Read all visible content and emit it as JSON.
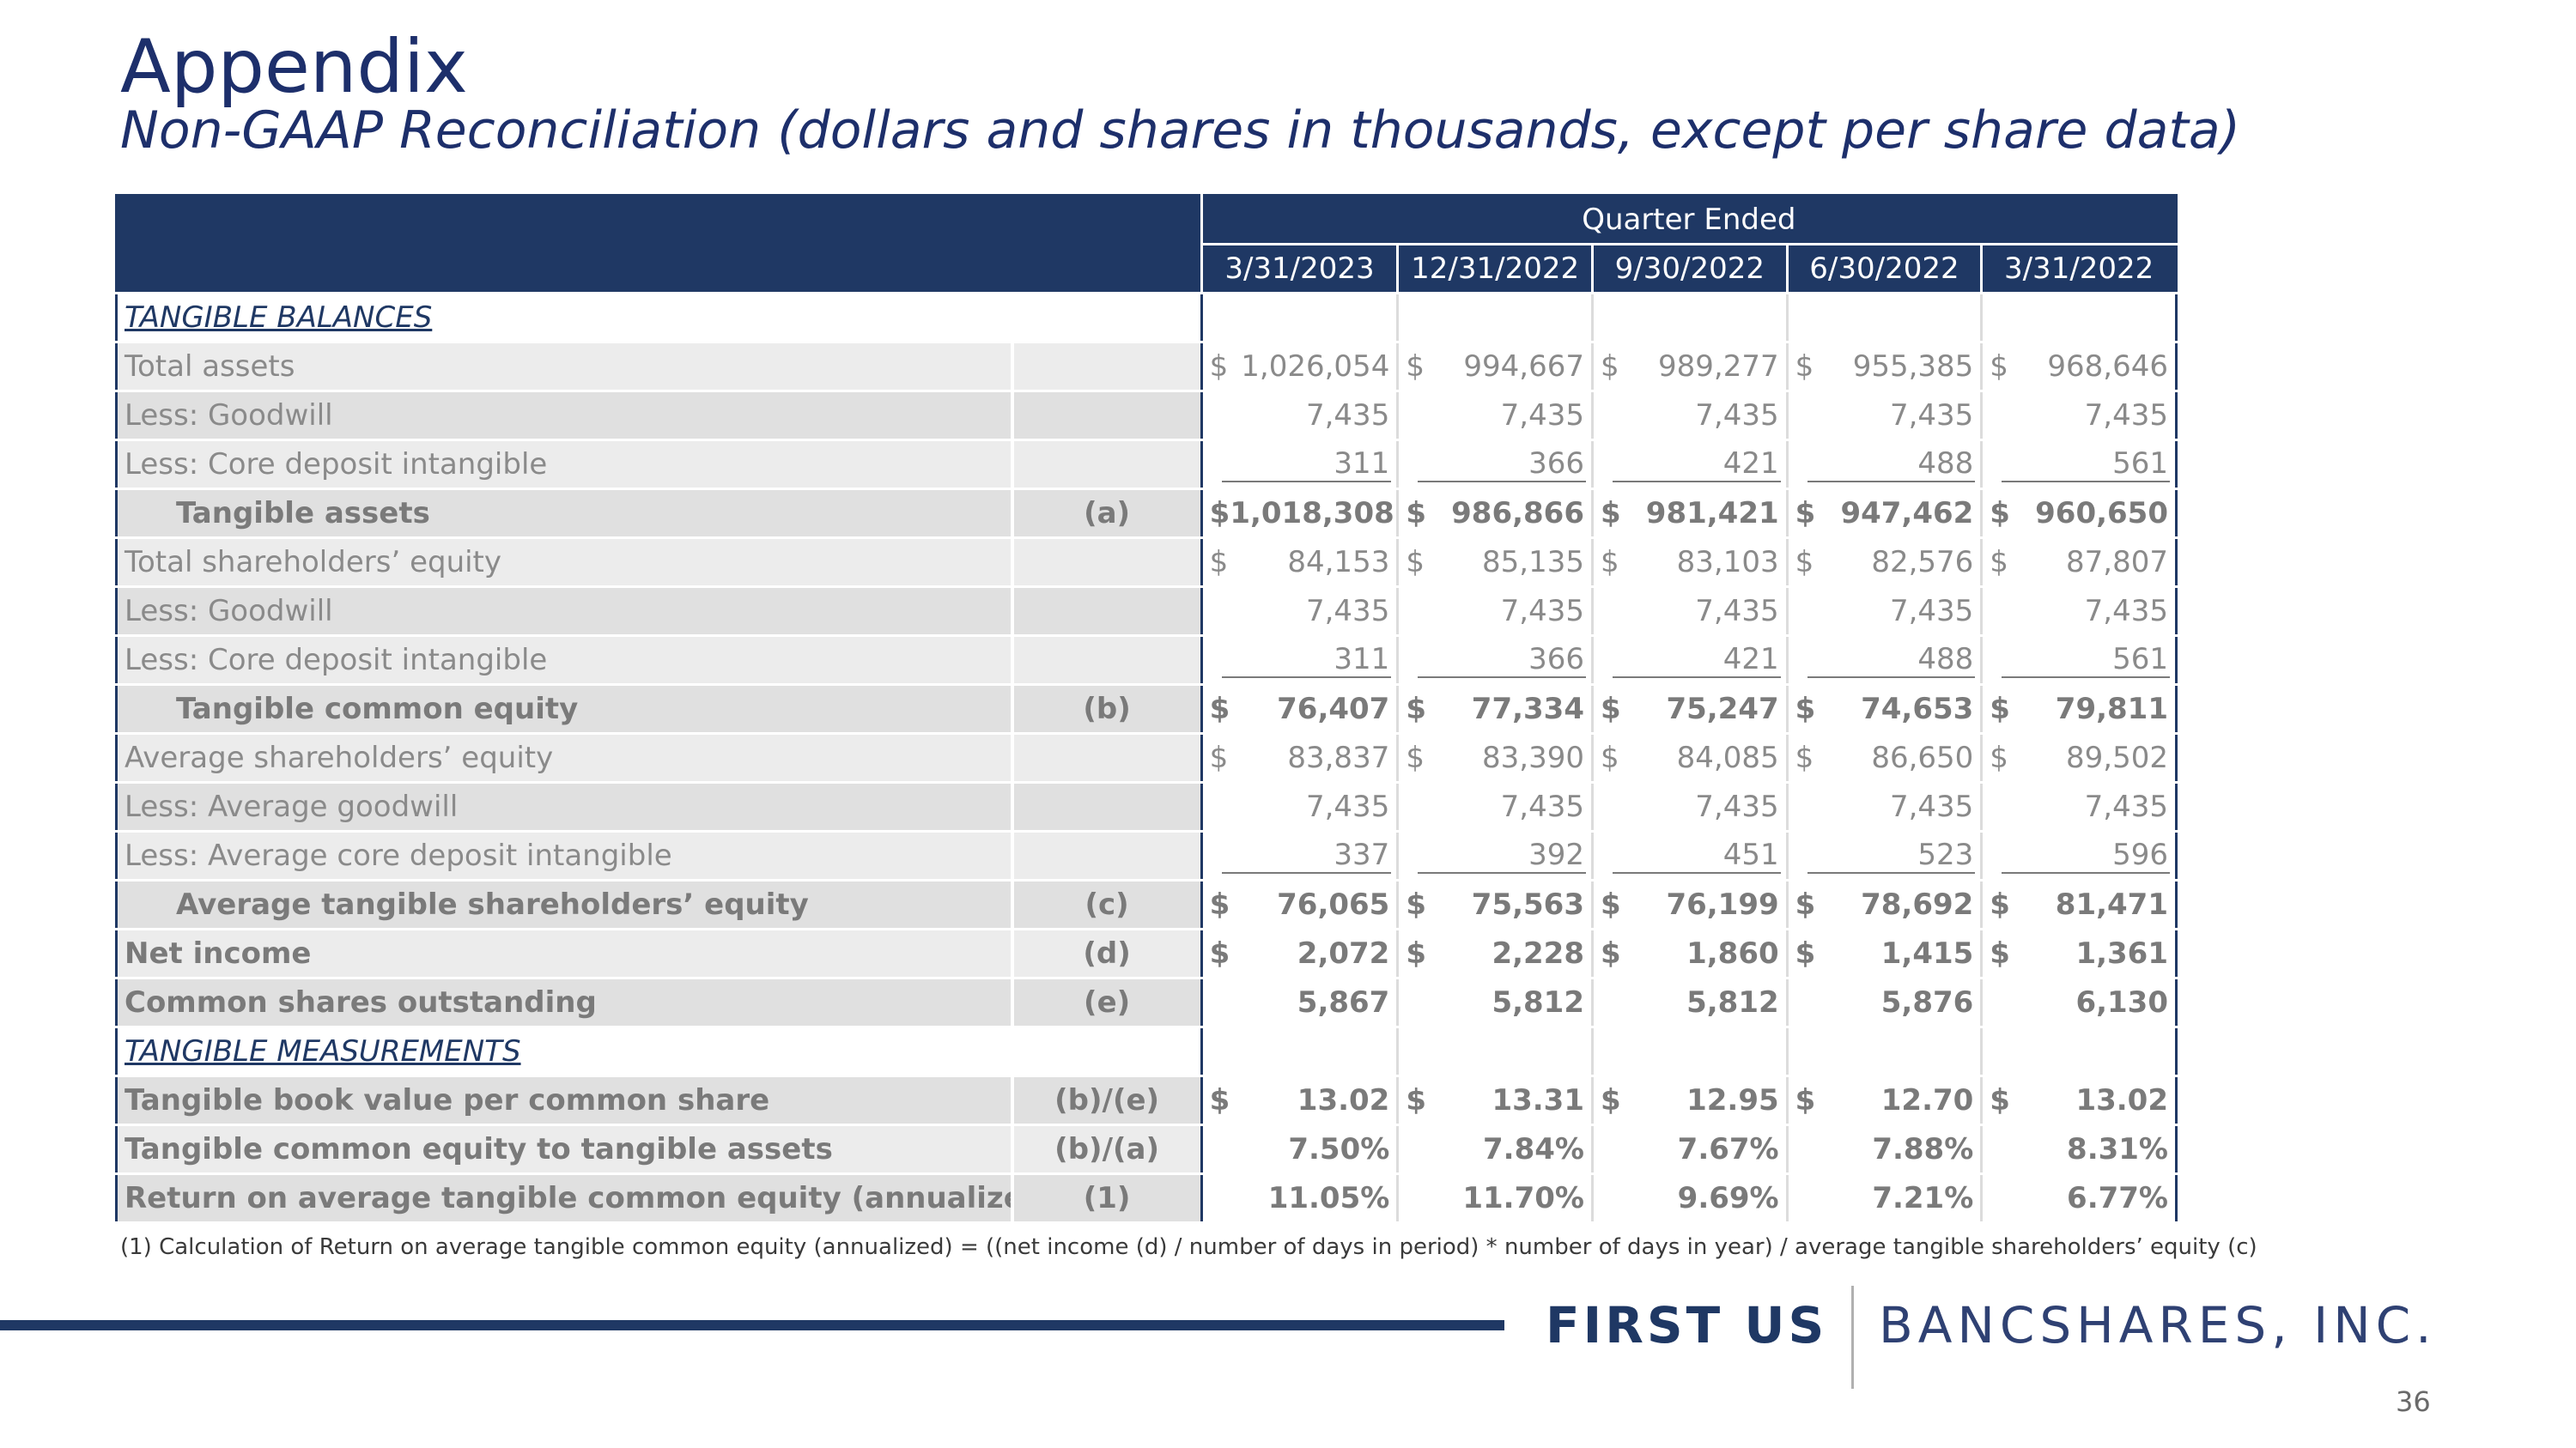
{
  "header": {
    "title": "Appendix",
    "subtitle": "Non-GAAP Reconciliation (dollars and shares in thousands, except per share data)"
  },
  "table": {
    "group_header": "Quarter Ended",
    "columns": [
      "3/31/2023",
      "12/31/2022",
      "9/30/2022",
      "6/30/2022",
      "3/31/2022"
    ],
    "rows": [
      {
        "label": "TANGIBLE BALANCES",
        "ref": "",
        "style": "section",
        "dollar": false,
        "values": [
          "",
          "",
          "",
          "",
          ""
        ]
      },
      {
        "label": "Total assets",
        "ref": "",
        "style": "normal",
        "dollar": true,
        "values": [
          "1,026,054",
          "994,667",
          "989,277",
          "955,385",
          "968,646"
        ]
      },
      {
        "label": "Less: Goodwill",
        "ref": "",
        "style": "normal",
        "dollar": false,
        "values": [
          "7,435",
          "7,435",
          "7,435",
          "7,435",
          "7,435"
        ]
      },
      {
        "label": "Less: Core deposit intangible",
        "ref": "",
        "style": "underline",
        "dollar": false,
        "values": [
          "311",
          "366",
          "421",
          "488",
          "561"
        ]
      },
      {
        "label": "Tangible assets",
        "ref": "(a)",
        "style": "bold-indent",
        "dollar": true,
        "values": [
          "$1,018,308",
          "986,866",
          "981,421",
          "947,462",
          "960,650"
        ]
      },
      {
        "label": "Total shareholders’ equity",
        "ref": "",
        "style": "normal",
        "dollar": true,
        "values": [
          "84,153",
          "85,135",
          "83,103",
          "82,576",
          "87,807"
        ]
      },
      {
        "label": "Less: Goodwill",
        "ref": "",
        "style": "normal",
        "dollar": false,
        "values": [
          "7,435",
          "7,435",
          "7,435",
          "7,435",
          "7,435"
        ]
      },
      {
        "label": "Less: Core deposit intangible",
        "ref": "",
        "style": "underline",
        "dollar": false,
        "values": [
          "311",
          "366",
          "421",
          "488",
          "561"
        ]
      },
      {
        "label": "Tangible common equity",
        "ref": "(b)",
        "style": "bold-indent",
        "dollar": true,
        "values": [
          "76,407",
          "77,334",
          "75,247",
          "74,653",
          "79,811"
        ]
      },
      {
        "label": "Average shareholders’ equity",
        "ref": "",
        "style": "normal",
        "dollar": true,
        "values": [
          "83,837",
          "83,390",
          "84,085",
          "86,650",
          "89,502"
        ]
      },
      {
        "label": "Less: Average goodwill",
        "ref": "",
        "style": "normal",
        "dollar": false,
        "values": [
          "7,435",
          "7,435",
          "7,435",
          "7,435",
          "7,435"
        ]
      },
      {
        "label": "Less: Average core deposit intangible",
        "ref": "",
        "style": "underline",
        "dollar": false,
        "values": [
          "337",
          "392",
          "451",
          "523",
          "596"
        ]
      },
      {
        "label": "Average tangible shareholders’ equity",
        "ref": "(c)",
        "style": "bold-indent",
        "dollar": true,
        "values": [
          "76,065",
          "75,563",
          "76,199",
          "78,692",
          "81,471"
        ]
      },
      {
        "label": "Net income",
        "ref": "(d)",
        "style": "bold",
        "dollar": true,
        "values": [
          "2,072",
          "2,228",
          "1,860",
          "1,415",
          "1,361"
        ]
      },
      {
        "label": "Common shares outstanding",
        "ref": "(e)",
        "style": "bold",
        "dollar": false,
        "values": [
          "5,867",
          "5,812",
          "5,812",
          "5,876",
          "6,130"
        ]
      },
      {
        "label": "TANGIBLE MEASUREMENTS",
        "ref": "",
        "style": "section",
        "dollar": false,
        "values": [
          "",
          "",
          "",
          "",
          ""
        ]
      },
      {
        "label": "Tangible book value per common share",
        "ref": "(b)/(e)",
        "style": "bold",
        "dollar": true,
        "values": [
          "13.02",
          "13.31",
          "12.95",
          "12.70",
          "13.02"
        ]
      },
      {
        "label": "Tangible common equity to tangible assets",
        "ref": "(b)/(a)",
        "style": "bold",
        "dollar": false,
        "values": [
          "7.50%",
          "7.84%",
          "7.67%",
          "7.88%",
          "8.31%"
        ]
      },
      {
        "label": "Return on average tangible common equity (annualized)",
        "ref": "(1)",
        "style": "bold",
        "dollar": false,
        "values": [
          "11.05%",
          "11.70%",
          "9.69%",
          "7.21%",
          "6.77%"
        ]
      }
    ]
  },
  "dollar_sign": "$",
  "footnote": "(1) Calculation of Return on average tangible common equity (annualized) = ((net income (d) / number of days in period) * number of days in year) / average tangible shareholders’ equity (c)",
  "logo": {
    "part1": "FIRST US",
    "part2": "BANCSHARES, INC."
  },
  "page_number": "36",
  "colors": {
    "brand_navy": "#1f3864",
    "title_navy": "#1d2f6b",
    "label_gray": "#8a8a8a"
  }
}
